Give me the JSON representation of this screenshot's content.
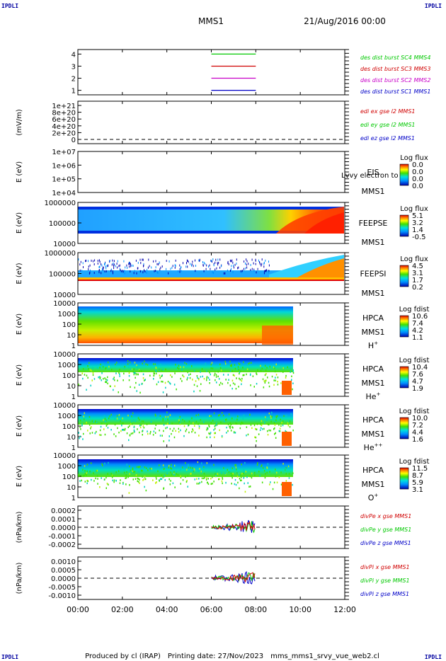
{
  "header": {
    "spacecraft": "MMS1",
    "datetime": "21/Aug/2016 00:00",
    "corner_label": "IPDLI"
  },
  "footer": {
    "produced_by": "Produced by cl (IRAP)",
    "printing_date": "Printing date: 27/Nov/2023",
    "filename": "mms_mms1_srvy_vue_web2.cl"
  },
  "chart_data": {
    "type": "multi-panel time series",
    "x_axis": {
      "range": [
        "00:00",
        "12:00"
      ],
      "tick_labels": [
        "00:00",
        "02:00",
        "04:00",
        "06:00",
        "08:00",
        "10:00",
        "12:00"
      ]
    },
    "panels": [
      {
        "id": "burst",
        "type": "line",
        "y_ticks": [
          "4",
          "3",
          "2",
          "1"
        ],
        "series": [
          {
            "name": "des dist burst SC1 MMS1",
            "color": "#0000c8",
            "y": 1,
            "x_range": [
              "06:00",
              "08:00"
            ]
          },
          {
            "name": "des dist burst SC2 MMS2",
            "color": "#c800c8",
            "y": 2,
            "x_range": [
              "06:00",
              "08:00"
            ]
          },
          {
            "name": "des dist burst SC3 MMS3",
            "color": "#d00000",
            "y": 3,
            "x_range": [
              "06:00",
              "08:00"
            ]
          },
          {
            "name": "des dist burst SC4 MMS4",
            "color": "#00c800",
            "y": 4,
            "x_range": [
              "06:00",
              "08:00"
            ]
          }
        ]
      },
      {
        "id": "edi",
        "type": "line",
        "ylabel": "(mV/m)",
        "y_ticks": [
          "1e+21",
          "8e+20",
          "6e+20",
          "4e+20",
          "2e+20",
          "0"
        ],
        "series": [
          {
            "name": "edi ex gse l2 MMS1",
            "color": "#d00000"
          },
          {
            "name": "edi ey gse l2 MMS1",
            "color": "#00c800"
          },
          {
            "name": "edi ez gse l2 MMS1",
            "color": "#0000c8"
          }
        ]
      },
      {
        "id": "eis",
        "type": "heatmap",
        "ylabel": "E (eV)",
        "y_ticks": [
          "1e+07",
          "1e+06",
          "1e+05",
          "1e+04"
        ],
        "labels": [
          "EIS",
          "MMS1"
        ],
        "overlay_text": "Lvvy electron to",
        "colorbar": {
          "title": "Log flux",
          "ticks": [
            "0.0",
            "0.0",
            "0.0",
            "0.0"
          ]
        }
      },
      {
        "id": "feepse",
        "type": "heatmap",
        "ylabel": "E (eV)",
        "y_ticks": [
          "1000000",
          "100000",
          "10000"
        ],
        "labels": [
          "FEEPSE",
          "MMS1"
        ],
        "colorbar": {
          "title": "Log flux",
          "ticks": [
            "5.1",
            "3.2",
            "1.4",
            "-0.5"
          ]
        }
      },
      {
        "id": "feepsi",
        "type": "heatmap",
        "ylabel": "E (eV)",
        "y_ticks": [
          "1000000",
          "100000",
          "10000"
        ],
        "labels": [
          "FEEPSI",
          "MMS1"
        ],
        "colorbar": {
          "title": "Log flux",
          "ticks": [
            "4.5",
            "3.1",
            "1.7",
            "0.2"
          ]
        }
      },
      {
        "id": "hpca_h",
        "type": "heatmap",
        "ylabel": "E (eV)",
        "y_ticks": [
          "10000",
          "1000",
          "100",
          "10",
          "1"
        ],
        "labels": [
          "HPCA",
          "MMS1"
        ],
        "species": "H",
        "species_sup": "+",
        "colorbar": {
          "title": "Log fdist",
          "ticks": [
            "10.6",
            "7.4",
            "4.2",
            "1.1"
          ]
        }
      },
      {
        "id": "hpca_he1",
        "type": "heatmap",
        "ylabel": "E (eV)",
        "y_ticks": [
          "10000",
          "1000",
          "100",
          "10",
          "1"
        ],
        "labels": [
          "HPCA",
          "MMS1"
        ],
        "species": "He",
        "species_sup": "+",
        "colorbar": {
          "title": "Log fdist",
          "ticks": [
            "10.4",
            "7.6",
            "4.7",
            "1.9"
          ]
        }
      },
      {
        "id": "hpca_he2",
        "type": "heatmap",
        "ylabel": "E (eV)",
        "y_ticks": [
          "10000",
          "1000",
          "100",
          "10",
          "1"
        ],
        "labels": [
          "HPCA",
          "MMS1"
        ],
        "species": "He",
        "species_sup": "++",
        "colorbar": {
          "title": "Log fdist",
          "ticks": [
            "10.0",
            "7.2",
            "4.4",
            "1.6"
          ]
        }
      },
      {
        "id": "hpca_o",
        "type": "heatmap",
        "ylabel": "E (eV)",
        "y_ticks": [
          "10000",
          "1000",
          "100",
          "10",
          "1"
        ],
        "labels": [
          "HPCA",
          "MMS1"
        ],
        "species": "O",
        "species_sup": "+",
        "colorbar": {
          "title": "Log fdist",
          "ticks": [
            "11.5",
            "8.7",
            "5.9",
            "3.1"
          ]
        }
      },
      {
        "id": "divpe",
        "type": "line",
        "ylabel": "(nPa/km)",
        "y_ticks": [
          "0.0002",
          "0.0001",
          "0.0000",
          "-0.0001",
          "-0.0002"
        ],
        "series": [
          {
            "name": "divPe x gse MMS1",
            "color": "#d00000"
          },
          {
            "name": "divPe y gse MMS1",
            "color": "#00c800"
          },
          {
            "name": "divPe z gse MMS1",
            "color": "#0000c8"
          }
        ]
      },
      {
        "id": "divpi",
        "type": "line",
        "ylabel": "(nPa/km)",
        "y_ticks": [
          "0.0010",
          "0.0005",
          "0.0000",
          "-0.0005",
          "-0.0010"
        ],
        "series": [
          {
            "name": "divPi x gse MMS1",
            "color": "#d00000"
          },
          {
            "name": "divPi y gse MMS1",
            "color": "#00c800"
          },
          {
            "name": "divPi z gse MMS1",
            "color": "#0000c8"
          }
        ]
      }
    ]
  }
}
